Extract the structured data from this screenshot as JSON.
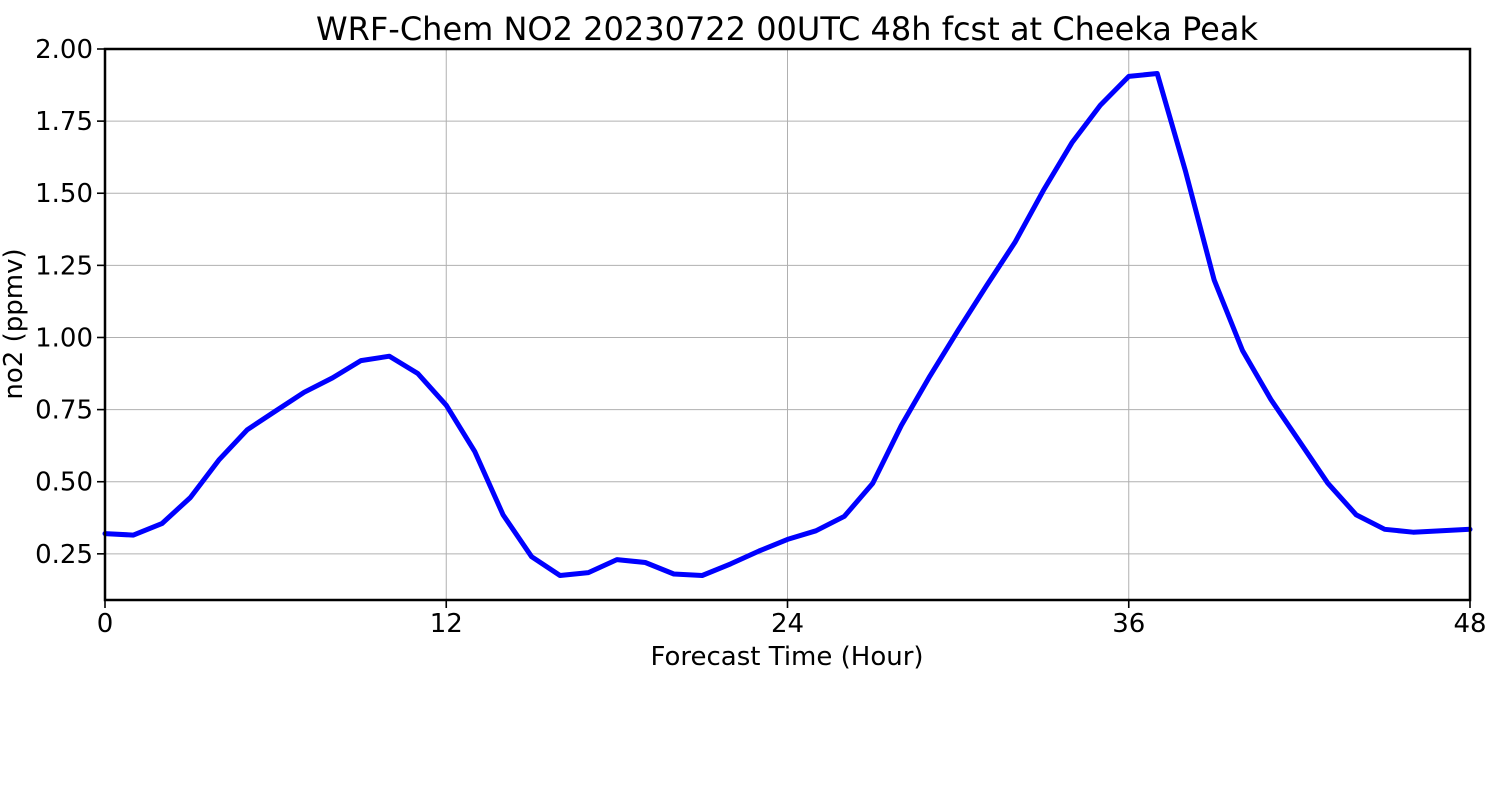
{
  "chart_data": {
    "type": "line",
    "title": "WRF-Chem NO2  20230722 00UTC 48h fcst at Cheeka Peak",
    "xlabel": "Forecast Time (Hour)",
    "ylabel": "no2  (ppmv)",
    "xlim": [
      0,
      48
    ],
    "ylim": [
      0.09,
      2.0
    ],
    "xticks": [
      0,
      12,
      24,
      36,
      48
    ],
    "xtick_labels": [
      "0",
      "12",
      "24",
      "36",
      "48"
    ],
    "yticks": [
      0.25,
      0.5,
      0.75,
      1.0,
      1.25,
      1.5,
      1.75,
      2.0
    ],
    "ytick_labels": [
      "0.25",
      "0.50",
      "0.75",
      "1.00",
      "1.25",
      "1.50",
      "1.75",
      "2.00"
    ],
    "grid": true,
    "legend": "none",
    "series": [
      {
        "color": "#0000ff",
        "x": [
          0,
          1,
          2,
          3,
          4,
          5,
          6,
          7,
          8,
          9,
          10,
          11,
          12,
          13,
          14,
          15,
          16,
          17,
          18,
          19,
          20,
          21,
          22,
          23,
          24,
          25,
          26,
          27,
          28,
          29,
          30,
          31,
          32,
          33,
          34,
          35,
          36,
          37,
          38,
          39,
          40,
          41,
          42,
          43,
          44,
          45,
          46,
          47,
          48
        ],
        "values": [
          0.32,
          0.315,
          0.355,
          0.445,
          0.575,
          0.68,
          0.745,
          0.81,
          0.86,
          0.92,
          0.935,
          0.875,
          0.765,
          0.605,
          0.385,
          0.24,
          0.175,
          0.185,
          0.23,
          0.22,
          0.18,
          0.175,
          0.215,
          0.26,
          0.3,
          0.33,
          0.38,
          0.495,
          0.695,
          0.865,
          1.025,
          1.18,
          1.33,
          1.51,
          1.675,
          1.805,
          1.905,
          1.915,
          1.575,
          1.2,
          0.955,
          0.785,
          0.64,
          0.495,
          0.385,
          0.335,
          0.325,
          0.33,
          0.335
        ]
      }
    ]
  }
}
